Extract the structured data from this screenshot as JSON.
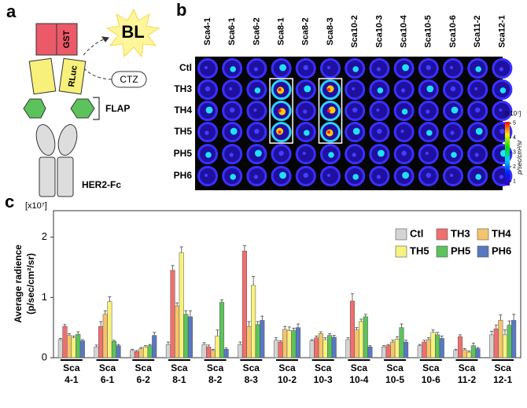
{
  "panel_labels": [
    "a",
    "b",
    "c"
  ],
  "diagram": {
    "gst": "GST",
    "rluc": "RLuc",
    "bl": "BL",
    "ctz": "CTZ",
    "flap": "FLAP",
    "her2": "HER2-Fc"
  },
  "plate": {
    "columns": [
      "Sca4-1",
      "Sca6-1",
      "Sca6-2",
      "Sca8-1",
      "Sca8-2",
      "Sca8-3",
      "Sca10-2",
      "Sca10-3",
      "Sca10-4",
      "Sca10-5",
      "Sca10-6",
      "Sca11-2",
      "Sca12-1"
    ],
    "rows": [
      "Ctl",
      "TH3",
      "TH4",
      "TH5",
      "PH5",
      "PH6"
    ],
    "colorbar": {
      "scale_label": "[x10⁷]",
      "unit": "p/sec/cm²/sr",
      "lim": [
        0.7,
        5.1
      ],
      "ticks": [
        1,
        2,
        3,
        4,
        5
      ]
    }
  },
  "chart_data": {
    "type": "bar",
    "y_scale_label": "[x10⁷]",
    "ylabel": "Average radience",
    "ylabel_unit": "(p/sec/cm²/sr)",
    "categories": [
      "Sca 4-1",
      "Sca 6-1",
      "Sca 6-2",
      "Sca 8-1",
      "Sca 8-2",
      "Sca 8-3",
      "Sca 10-2",
      "Sca 10-3",
      "Sca 10-4",
      "Sca 10-5",
      "Sca 10-6",
      "Sca 11-2",
      "Sca 12-1"
    ],
    "ylim": [
      0,
      2.44
    ],
    "yticks": [
      0,
      1,
      2
    ],
    "series": [
      {
        "name": "Ctl",
        "color": "#d4d4d4",
        "values": [
          0.3,
          0.18,
          0.12,
          0.22,
          0.22,
          0.22,
          0.29,
          0.28,
          0.3,
          0.18,
          0.2,
          0.12,
          0.38
        ],
        "errors": [
          0.02,
          0.03,
          0.02,
          0.04,
          0.03,
          0.04,
          0.04,
          0.02,
          0.03,
          0.02,
          0.02,
          0.02,
          0.06
        ]
      },
      {
        "name": "TH3",
        "color": "#ef6f6f",
        "values": [
          0.52,
          0.52,
          0.1,
          1.45,
          0.18,
          1.77,
          0.26,
          0.33,
          0.94,
          0.2,
          0.26,
          0.35,
          0.48
        ],
        "errors": [
          0.03,
          0.08,
          0.02,
          0.08,
          0.03,
          0.09,
          0.02,
          0.03,
          0.12,
          0.02,
          0.03,
          0.03,
          0.06
        ]
      },
      {
        "name": "TH4",
        "color": "#f6c46c",
        "values": [
          0.37,
          0.72,
          0.15,
          0.86,
          0.12,
          0.52,
          0.47,
          0.4,
          0.46,
          0.26,
          0.3,
          0.13,
          0.62
        ],
        "errors": [
          0.03,
          0.06,
          0.02,
          0.05,
          0.02,
          0.08,
          0.05,
          0.03,
          0.04,
          0.03,
          0.03,
          0.02,
          0.09
        ]
      },
      {
        "name": "TH5",
        "color": "#f7f27e",
        "values": [
          0.33,
          0.93,
          0.18,
          1.74,
          0.36,
          1.2,
          0.45,
          0.3,
          0.6,
          0.31,
          0.42,
          0.09,
          0.38
        ],
        "errors": [
          0.03,
          0.08,
          0.02,
          0.1,
          0.1,
          0.15,
          0.06,
          0.03,
          0.04,
          0.04,
          0.04,
          0.02,
          0.08
        ]
      },
      {
        "name": "PH5",
        "color": "#5cc35c",
        "values": [
          0.39,
          0.27,
          0.2,
          0.72,
          0.92,
          0.55,
          0.45,
          0.37,
          0.68,
          0.5,
          0.38,
          0.2,
          0.54
        ],
        "errors": [
          0.04,
          0.02,
          0.02,
          0.06,
          0.04,
          0.05,
          0.04,
          0.03,
          0.04,
          0.06,
          0.04,
          0.04,
          0.07
        ]
      },
      {
        "name": "PH6",
        "color": "#5878c0",
        "values": [
          0.28,
          0.2,
          0.37,
          0.68,
          0.14,
          0.62,
          0.5,
          0.34,
          0.18,
          0.26,
          0.32,
          0.15,
          0.62
        ],
        "errors": [
          0.02,
          0.02,
          0.05,
          0.1,
          0.02,
          0.07,
          0.06,
          0.03,
          0.02,
          0.03,
          0.04,
          0.02,
          0.1
        ]
      }
    ]
  }
}
